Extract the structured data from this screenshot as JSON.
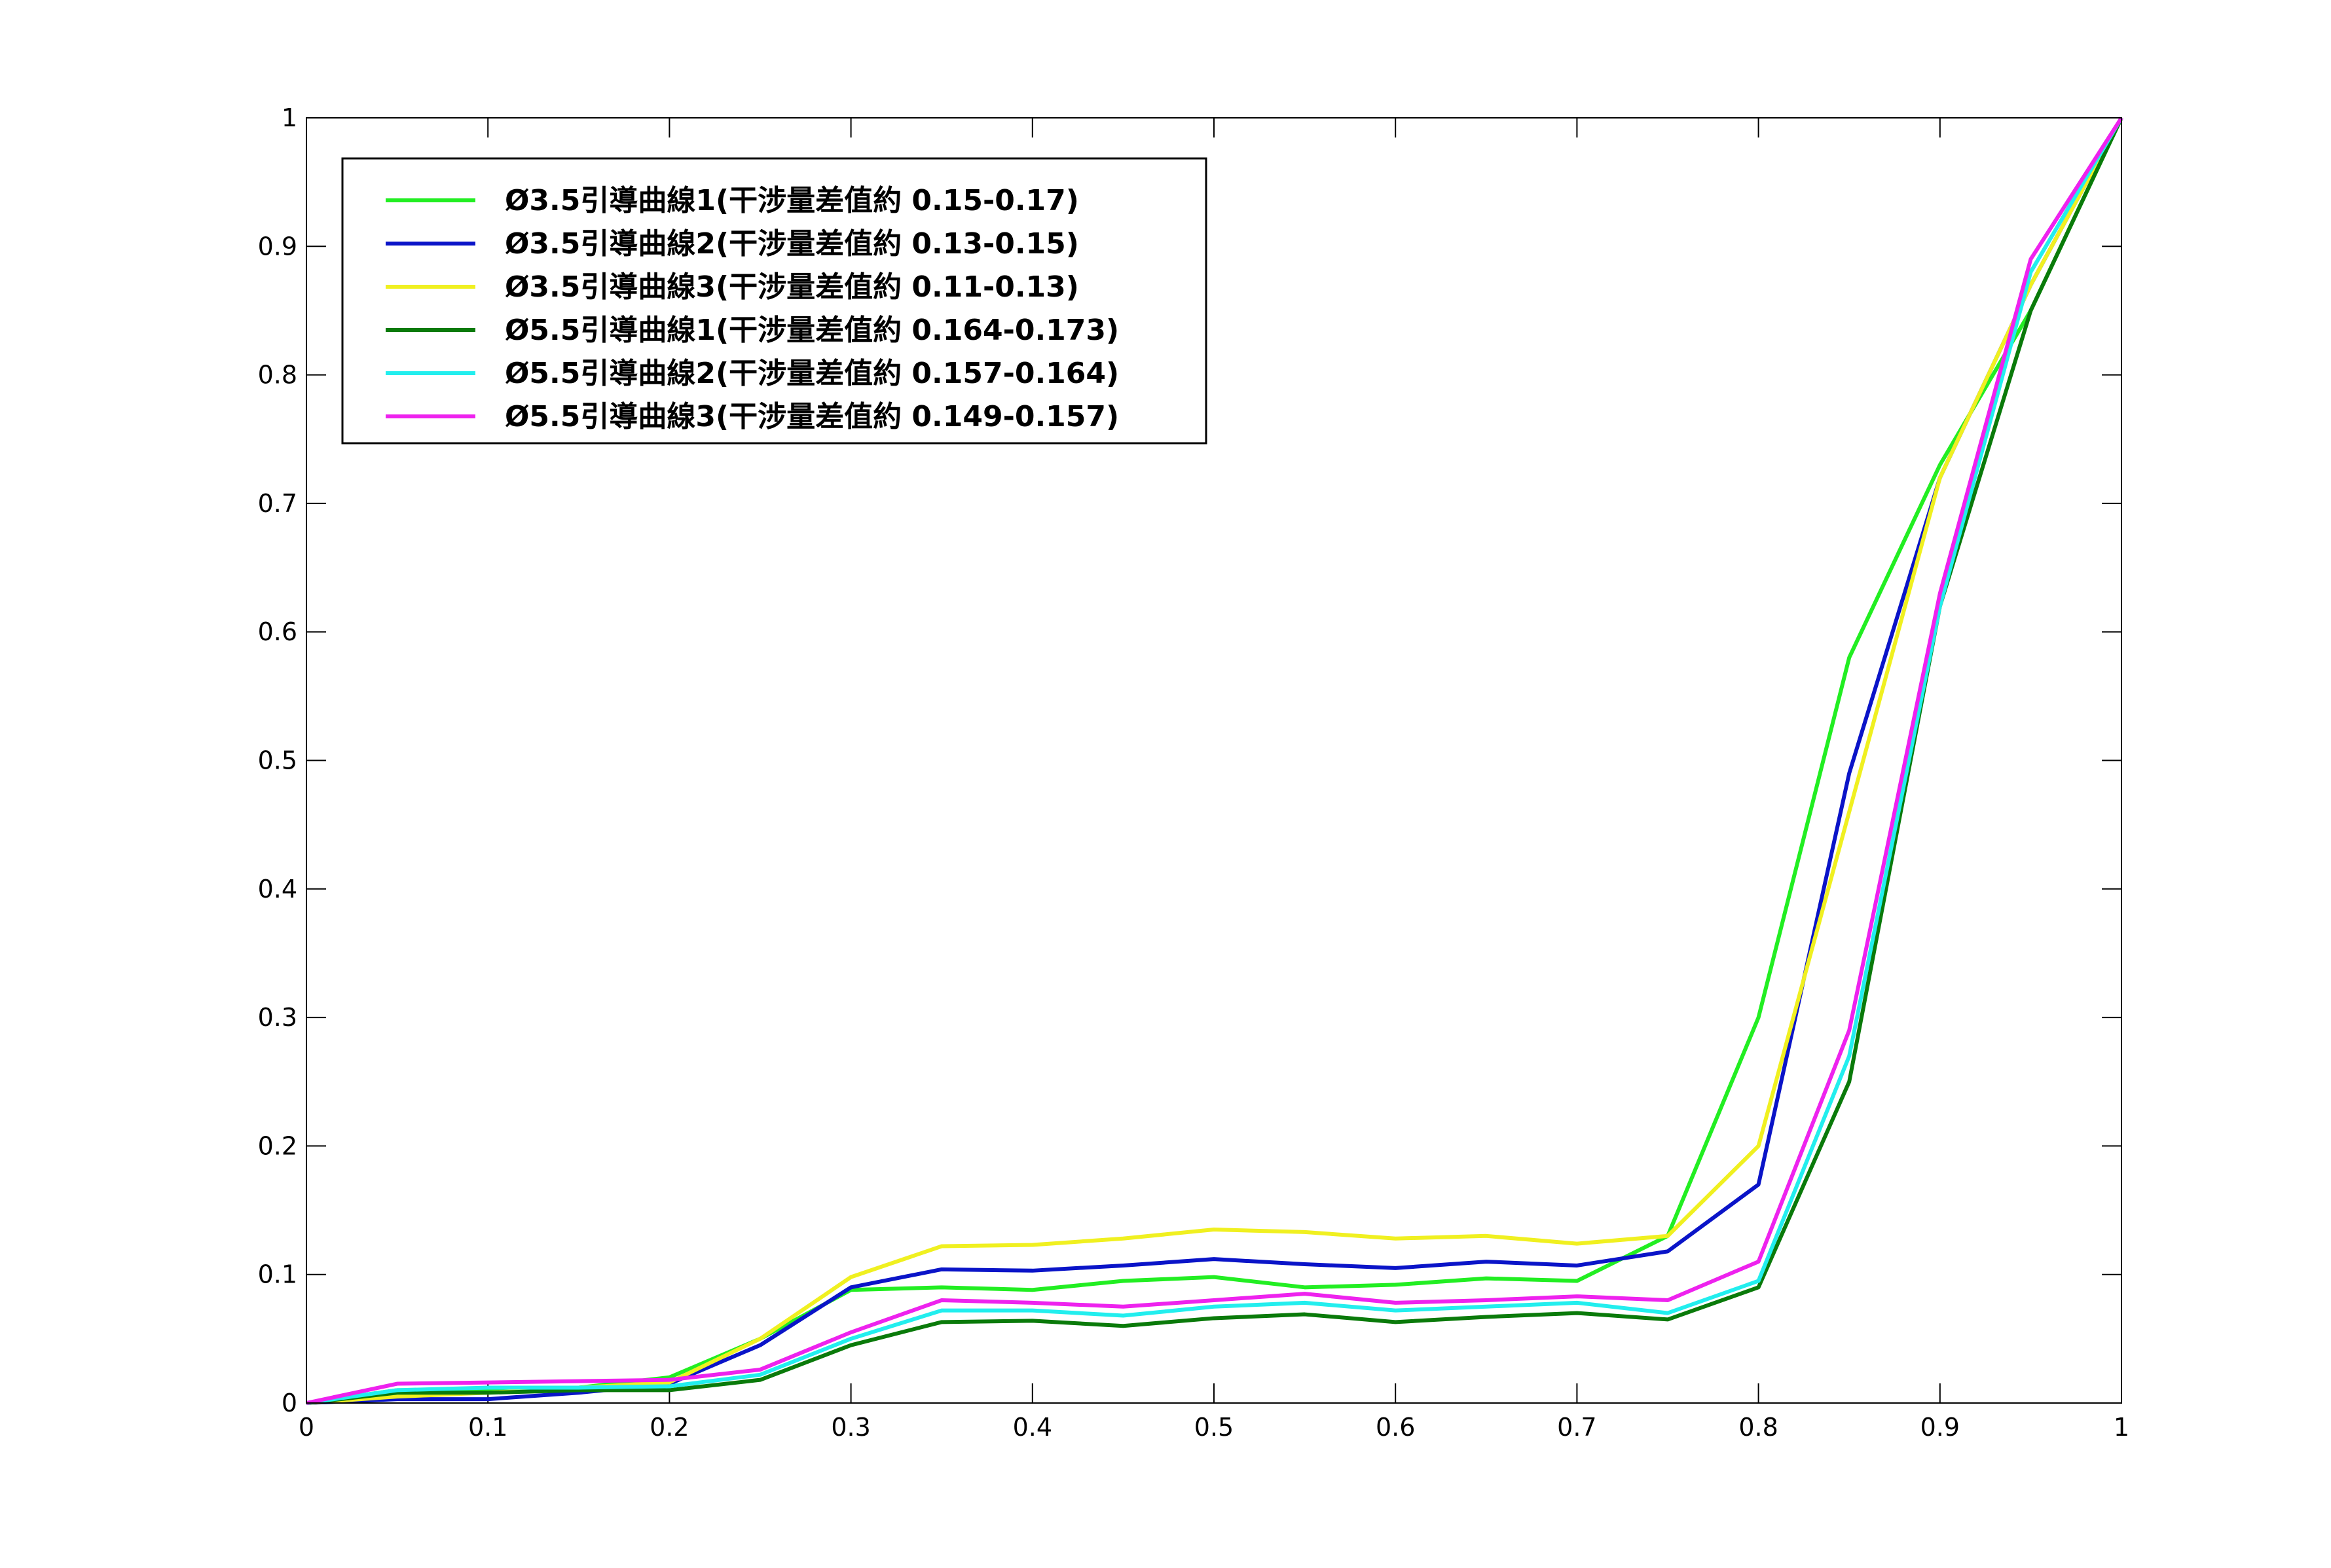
{
  "chart_data": {
    "type": "line",
    "x": [
      0,
      0.05,
      0.1,
      0.15,
      0.2,
      0.25,
      0.3,
      0.35,
      0.4,
      0.45,
      0.5,
      0.55,
      0.6,
      0.65,
      0.7,
      0.75,
      0.8,
      0.85,
      0.9,
      0.95,
      1
    ],
    "series": [
      {
        "name": "Ø3.5引導曲線1(干涉量差值約 0.15-0.17)",
        "color": "#22ee22",
        "values": [
          0,
          0.01,
          0.01,
          0.012,
          0.02,
          0.05,
          0.088,
          0.09,
          0.088,
          0.095,
          0.098,
          0.09,
          0.092,
          0.097,
          0.095,
          0.13,
          0.3,
          0.58,
          0.73,
          0.85,
          1
        ]
      },
      {
        "name": "Ø3.5引導曲線2(干涉量差值約 0.13-0.15)",
        "color": "#0a14c8",
        "values": [
          0,
          0.003,
          0.003,
          0.008,
          0.015,
          0.045,
          0.09,
          0.104,
          0.103,
          0.107,
          0.112,
          0.108,
          0.105,
          0.11,
          0.107,
          0.118,
          0.17,
          0.49,
          0.72,
          0.87,
          1
        ]
      },
      {
        "name": "Ø3.5引導曲線3(干涉量差值約 0.11-0.13)",
        "color": "#f0f020",
        "values": [
          0,
          0.005,
          0.008,
          0.012,
          0.016,
          0.05,
          0.098,
          0.122,
          0.123,
          0.128,
          0.135,
          0.133,
          0.128,
          0.13,
          0.124,
          0.13,
          0.2,
          0.46,
          0.72,
          0.87,
          1
        ]
      },
      {
        "name": "Ø5.5引導曲線1(干涉量差值約 0.164-0.173)",
        "color": "#0a7a0a",
        "values": [
          0,
          0.008,
          0.008,
          0.01,
          0.01,
          0.018,
          0.045,
          0.063,
          0.064,
          0.06,
          0.066,
          0.069,
          0.063,
          0.067,
          0.07,
          0.065,
          0.09,
          0.25,
          0.62,
          0.85,
          1
        ]
      },
      {
        "name": "Ø5.5引導曲線2(干涉量差值約 0.157-0.164)",
        "color": "#22eeee",
        "values": [
          0,
          0.01,
          0.012,
          0.012,
          0.013,
          0.022,
          0.05,
          0.072,
          0.072,
          0.068,
          0.075,
          0.078,
          0.072,
          0.075,
          0.078,
          0.07,
          0.095,
          0.27,
          0.62,
          0.88,
          1
        ]
      },
      {
        "name": "Ø5.5引導曲線3(干涉量差值約 0.149-0.157)",
        "color": "#ee22ee",
        "values": [
          0,
          0.015,
          0.016,
          0.017,
          0.018,
          0.026,
          0.055,
          0.08,
          0.078,
          0.075,
          0.08,
          0.085,
          0.078,
          0.08,
          0.083,
          0.08,
          0.11,
          0.29,
          0.63,
          0.89,
          1
        ]
      }
    ],
    "xlim": [
      0,
      1
    ],
    "ylim": [
      0,
      1
    ],
    "xticks": [
      0,
      0.1,
      0.2,
      0.3,
      0.4,
      0.5,
      0.6,
      0.7,
      0.8,
      0.9,
      1
    ],
    "yticks": [
      0,
      0.1,
      0.2,
      0.3,
      0.4,
      0.5,
      0.6,
      0.7,
      0.8,
      0.9,
      1
    ],
    "legend": "upper left",
    "grid": false
  }
}
